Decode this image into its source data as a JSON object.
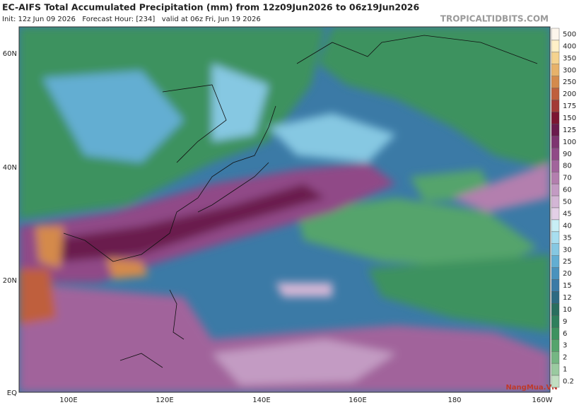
{
  "header": {
    "title": "EC-AIFS Total Accumulated Precipitation (mm) from 12z09Jun2026 to 06z19Jun2026",
    "subtitle": "Init: 12z Jun 09 2026   Forecast Hour: [234]   valid at 06z Fri, Jun 19 2026",
    "source": "TROPICALTIDBITS.COM"
  },
  "lat_labels": [
    "60N",
    "40N",
    "20N",
    "EQ"
  ],
  "lon_labels": [
    "100E",
    "120E",
    "140E",
    "160E",
    "180",
    "160W"
  ],
  "colorbar": {
    "labels": [
      "500",
      "400",
      "350",
      "300",
      "250",
      "200",
      "175",
      "150",
      "125",
      "100",
      "90",
      "80",
      "70",
      "60",
      "50",
      "45",
      "40",
      "35",
      "30",
      "25",
      "20",
      "15",
      "12",
      "10",
      "9",
      "6",
      "3",
      "2",
      "1",
      "0.2"
    ],
    "colors": [
      "#fdf6ec",
      "#fff0c8",
      "#f5d38f",
      "#e7b26a",
      "#d48a4c",
      "#bf5f3c",
      "#a33a36",
      "#7c1531",
      "#6b1b4d",
      "#7e3470",
      "#904a87",
      "#a1649b",
      "#b37fae",
      "#c39bc3",
      "#d3b6d5",
      "#e3d0e6",
      "#c8eef5",
      "#a8deef",
      "#86c8e2",
      "#63aed2",
      "#4a92bd",
      "#3b7aa6",
      "#2e6a82",
      "#2a6e5e",
      "#2f7f5c",
      "#3d925f",
      "#55a46c",
      "#75b683",
      "#9acaa0",
      "#c2dfc2"
    ]
  },
  "watermark": "NangMua.VN"
}
